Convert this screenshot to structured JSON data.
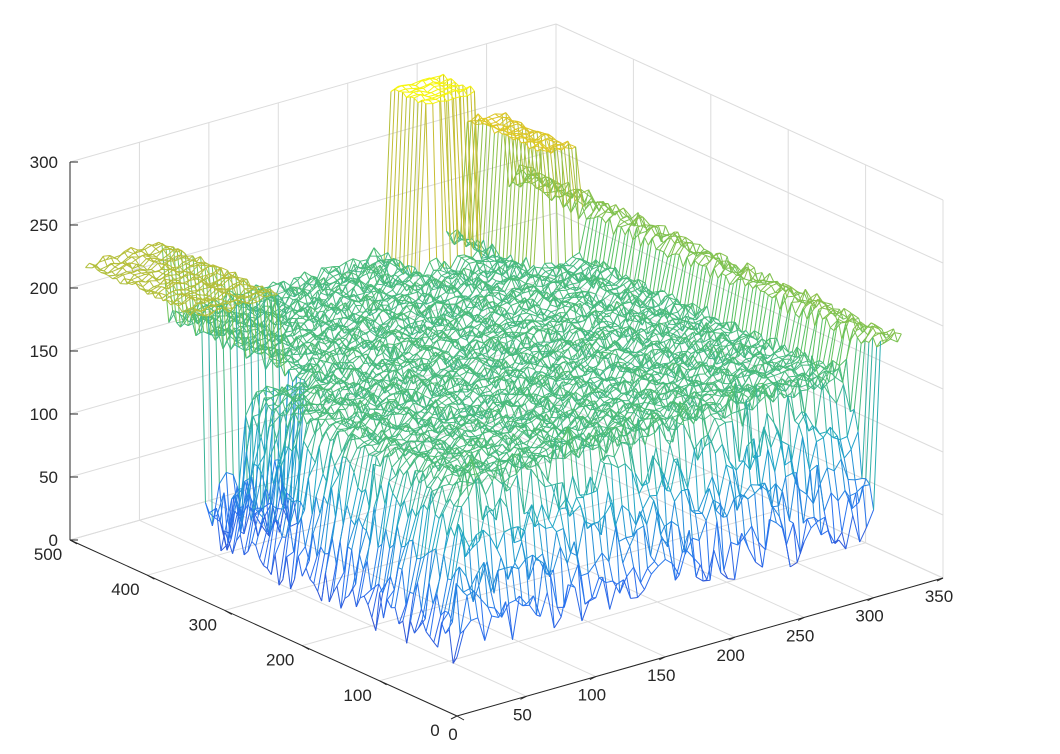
{
  "chart_data": {
    "type": "surface",
    "title": "",
    "xlabel": "",
    "ylabel": "",
    "zlabel": "",
    "grid": true,
    "legend": "none",
    "colormap": "parula",
    "colormap_stops": [
      "#3e26a8",
      "#2a72f0",
      "#1fa8c4",
      "#5cc35e",
      "#d9bd2c",
      "#f8fa0d"
    ],
    "xlim": [
      0,
      350
    ],
    "ylim": [
      0,
      500
    ],
    "zlim": [
      0,
      300
    ],
    "x_ticks": [
      "0",
      "50",
      "100",
      "150",
      "200",
      "250",
      "300",
      "350"
    ],
    "y_ticks": [
      "0",
      "100",
      "200",
      "300",
      "400",
      "500"
    ],
    "z_ticks": [
      "0",
      "50",
      "100",
      "150",
      "200",
      "250",
      "300"
    ],
    "x_tick_values": [
      0,
      50,
      100,
      150,
      200,
      250,
      300,
      350
    ],
    "y_tick_values": [
      0,
      100,
      200,
      300,
      400,
      500
    ],
    "z_tick_values": [
      0,
      50,
      100,
      150,
      200,
      250,
      300
    ],
    "surface_extent": {
      "x": [
        0,
        320
      ],
      "y": [
        0,
        480
      ]
    },
    "features": [
      {
        "kind": "wall",
        "along": "y",
        "x_range": [
          0,
          320
        ],
        "y_range": [
          0,
          40
        ],
        "z_top": 185,
        "z_bottom": 30
      },
      {
        "kind": "wall",
        "along": "x",
        "x_range": [
          0,
          30
        ],
        "y_range": [
          0,
          480
        ],
        "z_top": 185,
        "z_bottom": 30
      },
      {
        "kind": "plateau",
        "x_range": [
          20,
          310
        ],
        "y_range": [
          40,
          470
        ],
        "z": 165
      },
      {
        "kind": "tower",
        "x_range": [
          0,
          60
        ],
        "y_range": [
          300,
          480
        ],
        "z_top": 230,
        "z_bottom": 20
      },
      {
        "kind": "tower",
        "x_range": [
          215,
          260
        ],
        "y_range": [
          430,
          470
        ],
        "z_top": 300,
        "z_bottom": 220
      },
      {
        "kind": "tower",
        "x_range": [
          270,
          310
        ],
        "y_range": [
          380,
          470
        ],
        "z_top": 265,
        "z_bottom": 215
      }
    ]
  }
}
